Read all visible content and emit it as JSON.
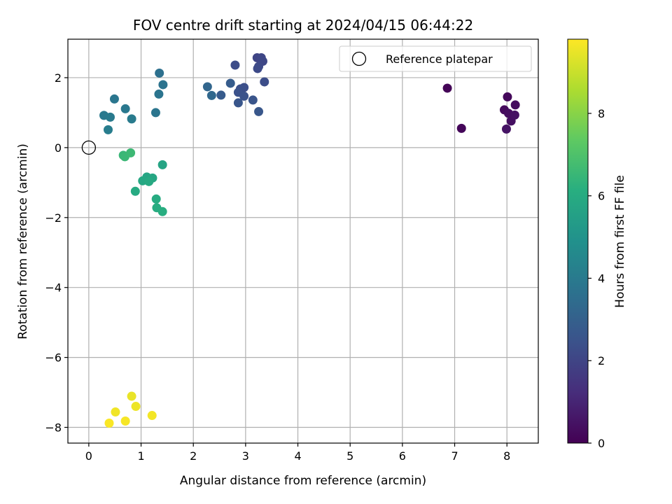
{
  "chart_data": {
    "type": "scatter",
    "title": "FOV centre drift starting at 2024/04/15 06:44:22",
    "xlabel": "Angular distance from reference (arcmin)",
    "ylabel": "Rotation from reference (arcmin)",
    "xlim": [
      -0.4,
      8.6
    ],
    "ylim": [
      -8.45,
      3.1
    ],
    "xticks": [
      0,
      1,
      2,
      3,
      4,
      5,
      6,
      7,
      8
    ],
    "yticks": [
      -8,
      -6,
      -4,
      -2,
      0,
      2
    ],
    "grid": true,
    "legend": {
      "placement": "top-right",
      "entries": [
        "Reference platepar"
      ]
    },
    "reference_point": {
      "name": "Reference platepar",
      "x": 0,
      "y": 0
    },
    "colorbar": {
      "label": "Hours from first FF file",
      "colormap": "viridis",
      "range": [
        0,
        9.8
      ],
      "ticks": [
        0,
        2,
        4,
        6,
        8
      ]
    },
    "points": [
      {
        "x": 6.86,
        "y": 1.7,
        "c": 0.1
      },
      {
        "x": 7.13,
        "y": 0.55,
        "c": 0.15
      },
      {
        "x": 8.01,
        "y": 1.45,
        "c": 0.2
      },
      {
        "x": 7.95,
        "y": 1.08,
        "c": 0.25
      },
      {
        "x": 8.16,
        "y": 1.22,
        "c": 0.3
      },
      {
        "x": 8.03,
        "y": 0.98,
        "c": 0.35
      },
      {
        "x": 8.08,
        "y": 0.76,
        "c": 0.4
      },
      {
        "x": 8.15,
        "y": 0.93,
        "c": 0.45
      },
      {
        "x": 7.99,
        "y": 0.53,
        "c": 0.5
      },
      {
        "x": 3.22,
        "y": 2.57,
        "c": 2.0
      },
      {
        "x": 3.3,
        "y": 2.57,
        "c": 2.05
      },
      {
        "x": 3.33,
        "y": 2.47,
        "c": 2.1
      },
      {
        "x": 3.25,
        "y": 2.32,
        "c": 2.15
      },
      {
        "x": 3.23,
        "y": 2.26,
        "c": 2.2
      },
      {
        "x": 2.8,
        "y": 2.36,
        "c": 2.25
      },
      {
        "x": 3.36,
        "y": 1.88,
        "c": 2.3
      },
      {
        "x": 2.97,
        "y": 1.72,
        "c": 2.35
      },
      {
        "x": 2.9,
        "y": 1.68,
        "c": 2.4
      },
      {
        "x": 2.86,
        "y": 1.58,
        "c": 2.45
      },
      {
        "x": 2.97,
        "y": 1.47,
        "c": 2.5
      },
      {
        "x": 3.14,
        "y": 1.36,
        "c": 2.55
      },
      {
        "x": 2.86,
        "y": 1.28,
        "c": 2.6
      },
      {
        "x": 3.25,
        "y": 1.03,
        "c": 2.65
      },
      {
        "x": 2.53,
        "y": 1.5,
        "c": 2.8
      },
      {
        "x": 2.71,
        "y": 1.84,
        "c": 2.85
      },
      {
        "x": 2.27,
        "y": 1.74,
        "c": 3.2
      },
      {
        "x": 2.35,
        "y": 1.49,
        "c": 3.3
      },
      {
        "x": 1.35,
        "y": 2.13,
        "c": 3.6
      },
      {
        "x": 1.42,
        "y": 1.8,
        "c": 3.7
      },
      {
        "x": 1.34,
        "y": 1.53,
        "c": 3.75
      },
      {
        "x": 1.28,
        "y": 1.0,
        "c": 3.8
      },
      {
        "x": 0.49,
        "y": 1.39,
        "c": 3.85
      },
      {
        "x": 0.7,
        "y": 1.11,
        "c": 3.9
      },
      {
        "x": 0.29,
        "y": 0.92,
        "c": 3.95
      },
      {
        "x": 0.41,
        "y": 0.87,
        "c": 4.0
      },
      {
        "x": 0.82,
        "y": 0.82,
        "c": 4.05
      },
      {
        "x": 0.37,
        "y": 0.51,
        "c": 4.1
      },
      {
        "x": 0.66,
        "y": -0.22,
        "c": 6.5
      },
      {
        "x": 0.69,
        "y": -0.26,
        "c": 6.55
      },
      {
        "x": 0.8,
        "y": -0.15,
        "c": 6.6
      },
      {
        "x": 1.41,
        "y": -0.49,
        "c": 5.7
      },
      {
        "x": 1.11,
        "y": -0.84,
        "c": 5.75
      },
      {
        "x": 1.22,
        "y": -0.87,
        "c": 5.8
      },
      {
        "x": 1.03,
        "y": -0.95,
        "c": 5.85
      },
      {
        "x": 1.15,
        "y": -0.97,
        "c": 5.9
      },
      {
        "x": 0.89,
        "y": -1.25,
        "c": 5.95
      },
      {
        "x": 1.29,
        "y": -1.47,
        "c": 6.0
      },
      {
        "x": 1.3,
        "y": -1.72,
        "c": 6.05
      },
      {
        "x": 1.41,
        "y": -1.83,
        "c": 6.1
      },
      {
        "x": 0.82,
        "y": -7.11,
        "c": 9.5
      },
      {
        "x": 0.9,
        "y": -7.4,
        "c": 9.55
      },
      {
        "x": 0.51,
        "y": -7.56,
        "c": 9.6
      },
      {
        "x": 1.21,
        "y": -7.66,
        "c": 9.65
      },
      {
        "x": 0.7,
        "y": -7.82,
        "c": 9.7
      },
      {
        "x": 0.39,
        "y": -7.88,
        "c": 9.75
      }
    ]
  }
}
